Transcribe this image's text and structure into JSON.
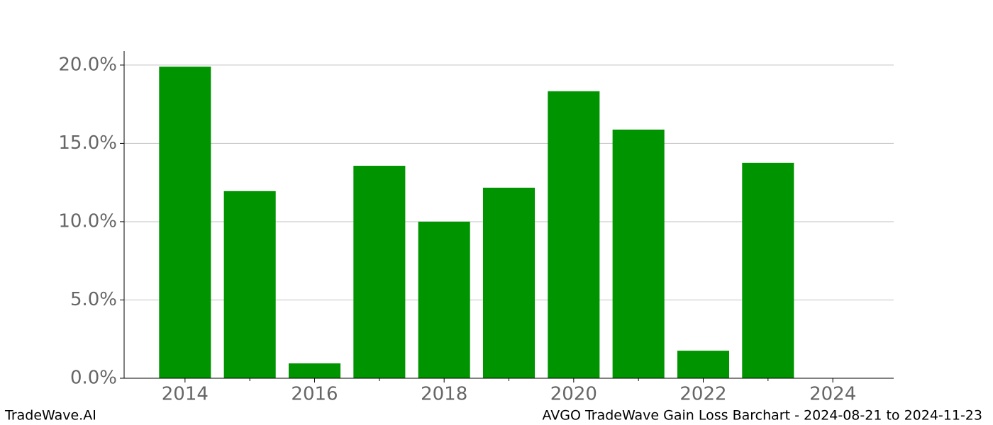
{
  "chart_data": {
    "type": "bar",
    "title": "AVGO TradeWave Gain Loss Barchart - 2024-08-21 to 2024-11-23",
    "watermark": "TradeWave.AI",
    "x": [
      2014,
      2015,
      2016,
      2017,
      2018,
      2019,
      2020,
      2021,
      2022,
      2023,
      2024
    ],
    "values": [
      19.9,
      11.95,
      0.95,
      13.57,
      10.0,
      12.17,
      18.33,
      15.88,
      1.76,
      13.76,
      0
    ],
    "color": "#009400",
    "bar_width": 0.8,
    "xlim": [
      2013.06,
      2024.94
    ],
    "xticks": [
      2014,
      2016,
      2018,
      2020,
      2022,
      2024
    ],
    "xminorticks": [
      2015,
      2017,
      2019,
      2021,
      2023
    ],
    "ylim": [
      0,
      20.9
    ],
    "yticks": [
      {
        "value": 0,
        "label": "0.0%"
      },
      {
        "value": 5,
        "label": "5.0%"
      },
      {
        "value": 10,
        "label": "10.0%"
      },
      {
        "value": 15,
        "label": "15.0%"
      },
      {
        "value": 20,
        "label": "20.0%"
      }
    ],
    "grid": true
  }
}
